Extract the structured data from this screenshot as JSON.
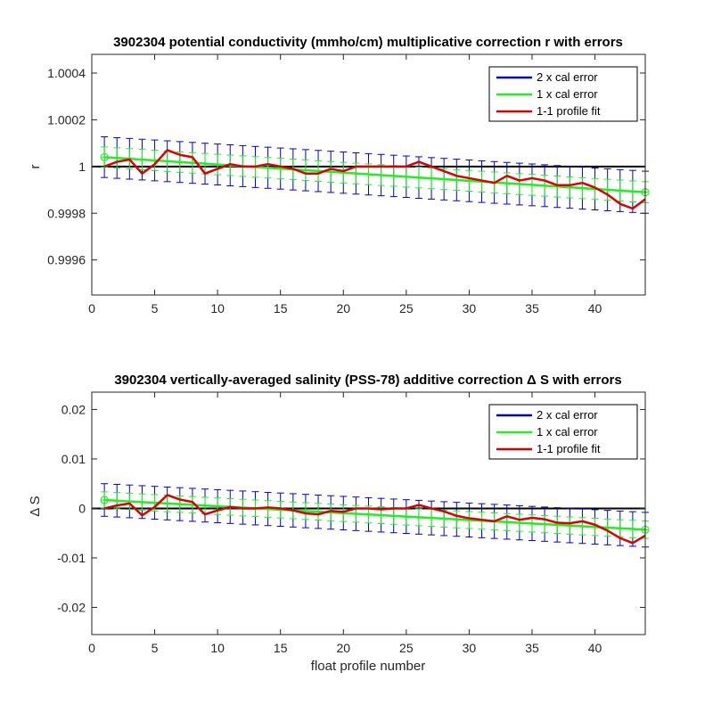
{
  "chart_data": [
    {
      "type": "line",
      "title": "3902304 potential conductivity (mmho/cm) multiplicative correction r with errors",
      "xlabel": "",
      "ylabel": "r",
      "xlim": [
        0,
        44
      ],
      "ylim": [
        0.99945,
        1.00048
      ],
      "xticks": [
        0,
        5,
        10,
        15,
        20,
        25,
        30,
        35,
        40
      ],
      "xtick_labels": [
        "0",
        "5",
        "10",
        "15",
        "20",
        "25",
        "30",
        "35",
        "40"
      ],
      "yticks": [
        0.9996,
        0.9998,
        1,
        1.0002,
        1.0004
      ],
      "ytick_labels": [
        "0.9996",
        "0.9998",
        "1",
        "1.0002",
        "1.0004"
      ],
      "grid": false,
      "legend_position": "top-right",
      "legend": [
        "2 x cal error",
        "1 x cal error",
        "1-1 profile fit"
      ],
      "colors": {
        "two_cal": "#0000cc",
        "one_cal": "#22ee22",
        "fit": "#dd0000",
        "reference": "#000000"
      },
      "reference_value": 1,
      "x": [
        1,
        2,
        3,
        4,
        5,
        6,
        7,
        8,
        9,
        10,
        11,
        12,
        13,
        14,
        15,
        16,
        17,
        18,
        19,
        20,
        21,
        22,
        23,
        24,
        25,
        26,
        27,
        28,
        29,
        30,
        31,
        32,
        33,
        34,
        35,
        36,
        37,
        38,
        39,
        40,
        41,
        42,
        43,
        44
      ],
      "fit_values": [
        1.0,
        1.00002,
        1.00003,
        0.99997,
        1.00001,
        1.00007,
        1.00005,
        1.00004,
        0.99997,
        0.99999,
        1.00001,
        1.0,
        1.0,
        1.00001,
        1.0,
        0.99999,
        0.99997,
        0.99997,
        0.99999,
        0.99998,
        1.0,
        1.0,
        1.0,
        1.0,
        1.0,
        1.00002,
        1.0,
        0.99998,
        0.99996,
        0.99995,
        0.99994,
        0.99993,
        0.99996,
        0.99994,
        0.99995,
        0.99994,
        0.99992,
        0.99992,
        0.99993,
        0.99991,
        0.99988,
        0.99984,
        0.99982,
        0.99986
      ],
      "trend_start": 1.00004,
      "trend_end": 0.99989,
      "error_halfwidth_2x_start": 8.7e-05,
      "error_halfwidth_2x_end": 9e-05
    },
    {
      "type": "line",
      "title": "3902304 vertically-averaged salinity (PSS-78) additive correction Δ S with errors",
      "xlabel": "float profile number",
      "ylabel": "Δ S",
      "xlim": [
        0,
        44
      ],
      "ylim": [
        -0.0255,
        0.0235
      ],
      "xticks": [
        0,
        5,
        10,
        15,
        20,
        25,
        30,
        35,
        40
      ],
      "xtick_labels": [
        "0",
        "5",
        "10",
        "15",
        "20",
        "25",
        "30",
        "35",
        "40"
      ],
      "yticks": [
        -0.02,
        -0.01,
        0,
        0.01,
        0.02
      ],
      "ytick_labels": [
        "-0.02",
        "-0.01",
        "0",
        "0.01",
        "0.02"
      ],
      "grid": false,
      "legend_position": "top-right",
      "legend": [
        "2 x cal error",
        "1 x cal error",
        "1-1 profile fit"
      ],
      "colors": {
        "two_cal": "#0000cc",
        "one_cal": "#22ee22",
        "fit": "#dd0000",
        "reference": "#000000"
      },
      "reference_value": 0,
      "x": [
        1,
        2,
        3,
        4,
        5,
        6,
        7,
        8,
        9,
        10,
        11,
        12,
        13,
        14,
        15,
        16,
        17,
        18,
        19,
        20,
        21,
        22,
        23,
        24,
        25,
        26,
        27,
        28,
        29,
        30,
        31,
        32,
        33,
        34,
        35,
        36,
        37,
        38,
        39,
        40,
        41,
        42,
        43,
        44
      ],
      "fit_values": [
        0.0,
        0.0006,
        0.001,
        -0.0014,
        0.0003,
        0.0027,
        0.0018,
        0.0013,
        -0.0012,
        -0.0004,
        0.0003,
        0.0,
        0.0,
        0.0002,
        0.0,
        -0.0004,
        -0.001,
        -0.0012,
        -0.0005,
        -0.0007,
        0.0,
        0.0,
        -0.0002,
        0.0,
        0.0,
        0.0007,
        0.0,
        -0.0006,
        -0.0015,
        -0.002,
        -0.0023,
        -0.0026,
        -0.0016,
        -0.0023,
        -0.0019,
        -0.0022,
        -0.0029,
        -0.003,
        -0.0026,
        -0.0033,
        -0.0045,
        -0.006,
        -0.007,
        -0.0055
      ],
      "trend_start": 0.0017,
      "trend_end": -0.0043,
      "error_halfwidth_2x_start": 0.0033,
      "error_halfwidth_2x_end": 0.0035
    }
  ]
}
